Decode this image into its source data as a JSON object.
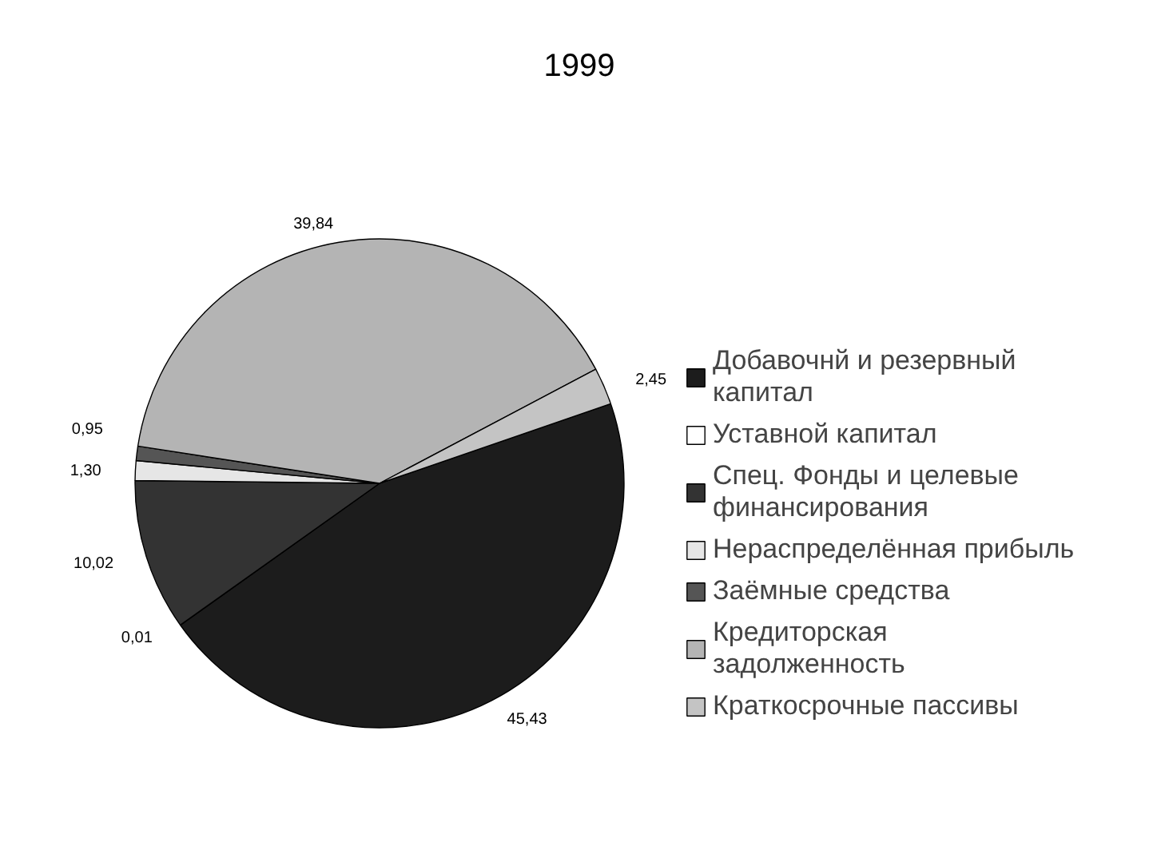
{
  "chart_data": {
    "type": "pie",
    "title": "1999",
    "categories": [
      "Добавочнй и резервный капитал",
      "Уставной капитал",
      "Спец. Фонды и целевые финансирования",
      "Нераспределённая прибыль",
      "Заёмные средства",
      "Кредиторская задолженность",
      "Краткосрочные пассивы"
    ],
    "values": [
      45.43,
      0.01,
      10.02,
      1.3,
      0.95,
      39.84,
      2.45
    ],
    "colors": [
      "#1c1c1c",
      "#ffffff",
      "#333333",
      "#e6e6e6",
      "#555555",
      "#b4b4b4",
      "#c4c4c4"
    ],
    "value_labels": [
      "45,43",
      "0,01",
      "10,02",
      "1,30",
      "0,95",
      "39,84",
      "2,45"
    ],
    "legend": "right"
  }
}
